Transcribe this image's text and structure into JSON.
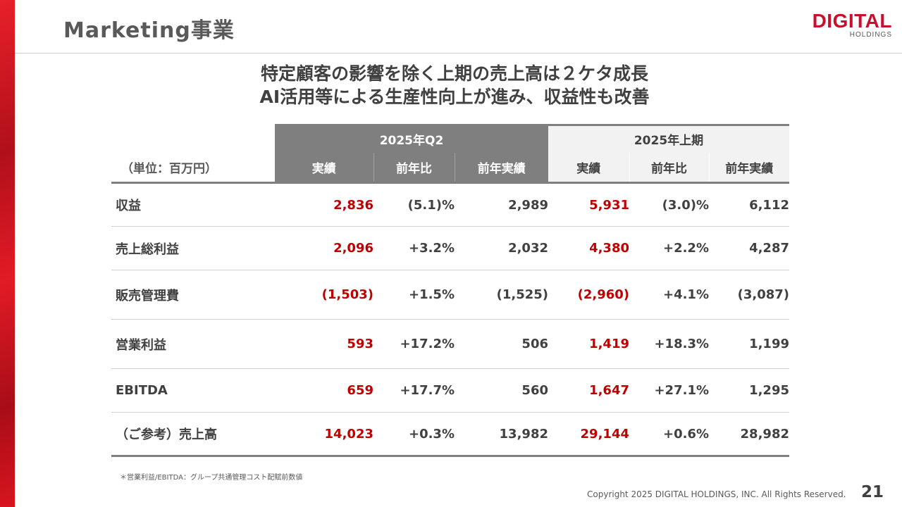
{
  "header": {
    "title": "Marketing事業",
    "logo_main": "DIGITAL",
    "logo_sub": "HOLDINGS"
  },
  "headline": [
    "特定顧客の影響を除く上期の売上高は２ケタ成長",
    "AI活用等による生産性向上が進み、収益性も改善"
  ],
  "table": {
    "unit": "（単位：百万円）",
    "groups": [
      "2025年Q2",
      "2025年上期"
    ],
    "columns": [
      "実績",
      "前年比",
      "前年実績",
      "実績",
      "前年比",
      "前年実績"
    ],
    "rows": [
      {
        "label": "収益",
        "values": [
          "2,836",
          "(5.1)%",
          "2,989",
          "5,931",
          "(3.0)%",
          "6,112"
        ]
      },
      {
        "label": "売上総利益",
        "values": [
          "2,096",
          "+3.2%",
          "2,032",
          "4,380",
          "+2.2%",
          "4,287"
        ]
      },
      {
        "label": "販売管理費",
        "values": [
          "(1,503)",
          "+1.5%",
          "(1,525)",
          "(2,960)",
          "+4.1%",
          "(3,087)"
        ]
      },
      {
        "label": "営業利益",
        "values": [
          "593",
          "+17.2%",
          "506",
          "1,419",
          "+18.3%",
          "1,199"
        ]
      },
      {
        "label": "EBITDA",
        "values": [
          "659",
          "+17.7%",
          "560",
          "1,647",
          "+27.1%",
          "1,295"
        ]
      },
      {
        "label": "（ご参考）売上高",
        "values": [
          "14,023",
          "+0.3%",
          "13,982",
          "29,144",
          "+0.6%",
          "28,982"
        ]
      }
    ]
  },
  "footer": {
    "note": "＊営業利益/EBITDA：グループ共通管理コスト配賦前数値",
    "copyright": "Copyright 2025 DIGITAL HOLDINGS, INC. All Rights Reserved.",
    "page": "21"
  },
  "colors": {
    "accent": "#c00000",
    "header_gray": "#7f7f7f",
    "header_light": "#f2f2f2"
  }
}
